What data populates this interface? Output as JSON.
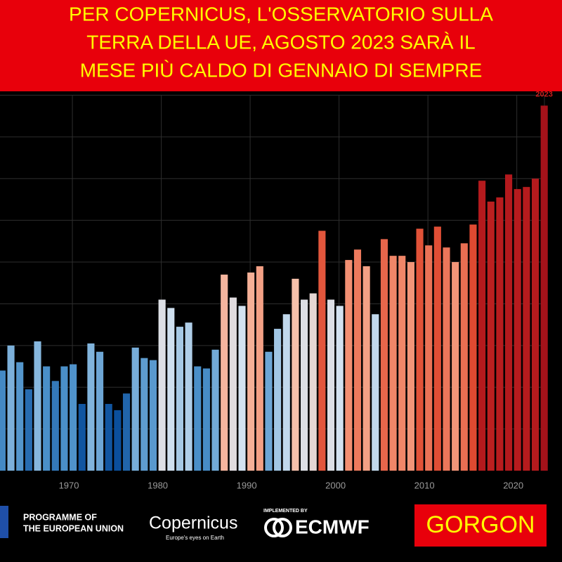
{
  "banner": {
    "lines": [
      "PER COPERNICUS, L'OSSERVATORIO SULLA",
      "TERRA DELLA UE, AGOSTO 2023 SARÀ IL",
      "MESE PIÙ CALDO DI GENNAIO DI SEMPRE"
    ]
  },
  "chart_data": {
    "type": "bar",
    "x": [
      1962,
      1963,
      1964,
      1965,
      1966,
      1967,
      1968,
      1969,
      1970,
      1971,
      1972,
      1973,
      1974,
      1975,
      1976,
      1977,
      1978,
      1979,
      1980,
      1981,
      1982,
      1983,
      1984,
      1985,
      1986,
      1987,
      1988,
      1989,
      1990,
      1991,
      1992,
      1993,
      1994,
      1995,
      1996,
      1997,
      1998,
      1999,
      2000,
      2001,
      2002,
      2003,
      2004,
      2005,
      2006,
      2007,
      2008,
      2009,
      2010,
      2011,
      2012,
      2013,
      2014,
      2015,
      2016,
      2017,
      2018,
      2019,
      2020,
      2021,
      2022,
      2023
    ],
    "values": [
      2.4,
      3.0,
      2.6,
      1.95,
      3.1,
      2.5,
      2.15,
      2.5,
      2.55,
      1.6,
      3.05,
      2.85,
      1.6,
      1.45,
      1.85,
      2.95,
      2.7,
      2.65,
      4.1,
      3.9,
      3.45,
      3.55,
      2.5,
      2.45,
      2.9,
      4.7,
      4.15,
      3.95,
      4.75,
      4.9,
      2.85,
      3.4,
      3.75,
      4.6,
      4.1,
      4.25,
      5.75,
      4.1,
      3.95,
      5.05,
      5.3,
      4.9,
      3.75,
      5.55,
      5.15,
      5.15,
      5.0,
      5.8,
      5.4,
      5.85,
      5.35,
      5.0,
      5.45,
      5.9,
      6.95,
      6.45,
      6.55,
      7.1,
      6.75,
      6.8,
      7.0,
      8.75
    ],
    "xlim": [
      1962.25,
      2023.9
    ],
    "xticks": [
      1970,
      1980,
      1990,
      2000,
      2010,
      2020
    ],
    "ylim": [
      0,
      9
    ],
    "gridlines": [
      1,
      2,
      3,
      4,
      5,
      6,
      7,
      8,
      9
    ],
    "grid": true,
    "annotation": "2023",
    "colorscale": [
      {
        "value": 1.5,
        "color": "#0b4f9c"
      },
      {
        "value": 2.5,
        "color": "#4a8fc8"
      },
      {
        "value": 3.1,
        "color": "#86b7de"
      },
      {
        "value": 4.0,
        "color": "#d8e5f1"
      },
      {
        "value": 4.6,
        "color": "#f6c0aa"
      },
      {
        "value": 5.1,
        "color": "#f18a6c"
      },
      {
        "value": 5.9,
        "color": "#df4a31"
      },
      {
        "value": 6.5,
        "color": "#b81c1e"
      },
      {
        "value": 8.8,
        "color": "#a5121a"
      }
    ]
  },
  "footer": {
    "eu_programme": [
      "PROGRAMME OF",
      "THE EUROPEAN UNION"
    ],
    "copernicus": "Copernicus",
    "copernicus_tagline": "Europe's eyes on Earth",
    "implemented_by": "IMPLEMENTED BY",
    "ecmwf": "ECMWF",
    "brand": "GORGON"
  }
}
